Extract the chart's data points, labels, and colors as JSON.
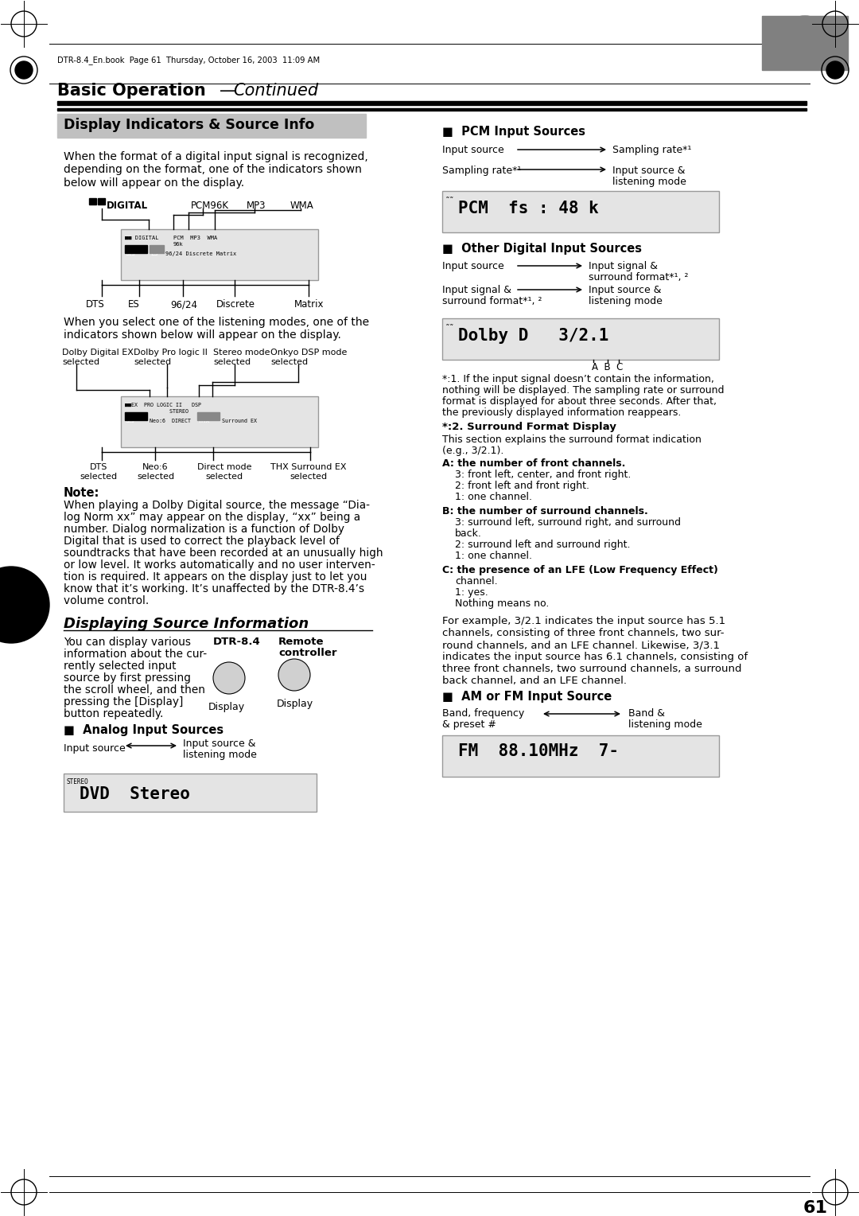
{
  "page_bg": "#ffffff",
  "header_text": "DTR-8.4_En.book  Page 61  Thursday, October 16, 2003  11:09 AM",
  "title_main": "Basic Operation",
  "title_italic": "Continued",
  "section1_title": "Display Indicators & Source Info",
  "section1_bg": "#c0c0c0",
  "para1_lines": [
    "When the format of a digital input signal is recognized,",
    "depending on the format, one of the indicators shown",
    "below will appear on the display."
  ],
  "diag1_top_labels": [
    "DIGITAL",
    "PCM96K",
    "MP3",
    "WMA"
  ],
  "diag1_bot_labels": [
    "DTS",
    "ES",
    "96/24",
    "Discrete",
    "Matrix"
  ],
  "para2_lines": [
    "When you select one of the listening modes, one of the",
    "indicators shown below will appear on the display."
  ],
  "note_title": "Note:",
  "note_lines": [
    "When playing a Dolby Digital source, the message “Dia-",
    "log Norm xx” may appear on the display, “xx” being a",
    "number. Dialog normalization is a function of Dolby",
    "Digital that is used to correct the playback level of",
    "soundtracks that have been recorded at an unusually high",
    "or low level. It works automatically and no user interven-",
    "tion is required. It appears on the display just to let you",
    "know that it’s working. It’s unaffected by the DTR-8.4’s",
    "volume control."
  ],
  "section2_title": "Displaying Source Information",
  "sec2_left_lines": [
    "You can display various",
    "information about the cur-",
    "rently selected input",
    "source by first pressing",
    "the scroll wheel, and then",
    "pressing the [Display]",
    "button repeatedly."
  ],
  "dtr_label": "DTR-8.4",
  "remote_label": "Remote\ncontroller",
  "display_label1": "Display",
  "display_label2": "Display",
  "analog_title": "■  Analog Input Sources",
  "analog_display": "DVD  Stereo",
  "pcm_title": "■  PCM Input Sources",
  "pcm_display": "PCM  fs : 48 k",
  "other_title": "■  Other Digital Input Sources",
  "other_display": "Dolby D   3/2.1",
  "star1_lines": [
    "*:1. If the input signal doesn’t contain the information,",
    "nothing will be displayed. The sampling rate or surround",
    "format is displayed for about three seconds. After that,",
    "the previously displayed information reappears."
  ],
  "star2_title": "*:2. Surround Format Display",
  "star2_intro": [
    "This section explains the surround format indication",
    "(e.g., 3/2.1)."
  ],
  "point_A_head": "A: the number of front channels.",
  "point_A_items": [
    "3: front left, center, and front right.",
    "2: front left and front right.",
    "1: one channel."
  ],
  "point_B_head": "B: the number of surround channels.",
  "point_B_items": [
    "3: surround left, surround right, and surround",
    "back.",
    "2: surround left and surround right.",
    "1: one channel."
  ],
  "point_C_head": "C: the presence of an LFE (Low Frequency Effect)",
  "point_C_items": [
    "channel.",
    "1: yes.",
    "Nothing means no."
  ],
  "example_lines": [
    "For example, 3/2.1 indicates the input source has 5.1",
    "channels, consisting of three front channels, two sur-",
    "round channels, and an LFE channel. Likewise, 3/3.1",
    "indicates the input source has 6.1 channels, consisting of",
    "three front channels, two surround channels, a surround",
    "back channel, and an LFE channel."
  ],
  "am_fm_title": "■  AM or FM Input Source",
  "am_fm_display": "FM  88.10MHz  7-",
  "page_number": "61",
  "display_bg": "#e4e4e4",
  "display_border": "#999999"
}
